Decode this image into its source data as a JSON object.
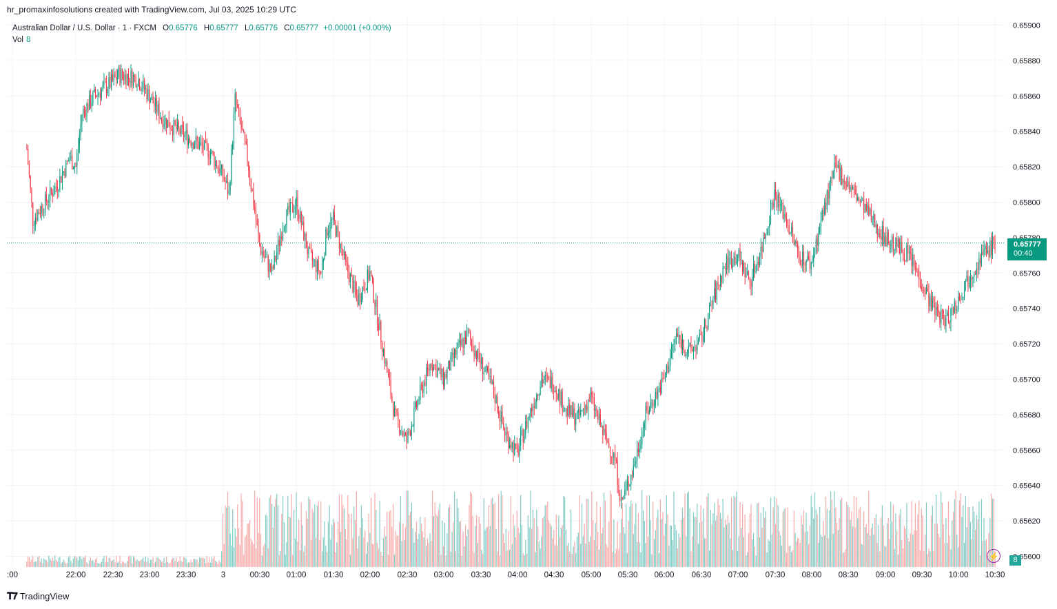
{
  "caption": "hr_promaxinfosolutions created with TradingView.com, Jul 03, 2025 10:29 UTC",
  "legend": {
    "symbol": "Australian Dollar / U.S. Dollar · 1 · FXCM",
    "o_label": "O",
    "o": "0.65776",
    "h_label": "H",
    "h": "0.65777",
    "l_label": "L",
    "l": "0.65776",
    "c_label": "C",
    "c": "0.65777",
    "change": "+0.00001 (+0.00%)",
    "vol_label": "Vol",
    "vol": "8"
  },
  "last_price": {
    "price": "0.65777",
    "countdown": "00:40",
    "volume": "8"
  },
  "footer_logo": "TradingView",
  "colors": {
    "up": "#089981",
    "down": "#f23645",
    "vol_up": "#80cbc4",
    "vol_down": "#f7a9a7",
    "grid": "#f0f3fa"
  },
  "chart_data": {
    "type": "candlestick",
    "x_ticks": [
      ":00",
      "22:00",
      "22:30",
      "23:00",
      "23:30",
      "3",
      "00:30",
      "01:00",
      "01:30",
      "02:00",
      "02:30",
      "03:00",
      "03:30",
      "04:00",
      "04:30",
      "05:00",
      "05:30",
      "06:00",
      "06:30",
      "07:00",
      "07:30",
      "08:00",
      "08:30",
      "09:00",
      "09:30",
      "10:00",
      "10:30"
    ],
    "y_ticks": [
      "0.65900",
      "0.65880",
      "0.65860",
      "0.65840",
      "0.65820",
      "0.65800",
      "0.65780",
      "0.65760",
      "0.65740",
      "0.65720",
      "0.65700",
      "0.65680",
      "0.65660",
      "0.65640",
      "0.65620",
      "0.65600"
    ],
    "ylim": [
      0.656,
      0.659
    ],
    "price_path": [
      [
        "21:20",
        0.6583
      ],
      [
        "21:25",
        0.6579
      ],
      [
        "21:35",
        0.658
      ],
      [
        "21:45",
        0.6581
      ],
      [
        "21:55",
        0.65825
      ],
      [
        "22:00",
        0.6582
      ],
      [
        "22:05",
        0.6585
      ],
      [
        "22:15",
        0.6586
      ],
      [
        "22:30",
        0.65868
      ],
      [
        "22:35",
        0.65872
      ],
      [
        "22:50",
        0.6587
      ],
      [
        "23:00",
        0.6586
      ],
      [
        "23:10",
        0.65848
      ],
      [
        "23:20",
        0.65842
      ],
      [
        "23:35",
        0.65835
      ],
      [
        "23:50",
        0.65828
      ],
      [
        "00:00",
        0.65815
      ],
      [
        "00:05",
        0.65805
      ],
      [
        "00:10",
        0.65858
      ],
      [
        "00:20",
        0.65825
      ],
      [
        "00:30",
        0.65775
      ],
      [
        "00:40",
        0.6576
      ],
      [
        "00:50",
        0.6579
      ],
      [
        "01:00",
        0.658
      ],
      [
        "01:10",
        0.6577
      ],
      [
        "01:20",
        0.6576
      ],
      [
        "01:25",
        0.65785
      ],
      [
        "01:30",
        0.6579
      ],
      [
        "01:40",
        0.65765
      ],
      [
        "01:50",
        0.65745
      ],
      [
        "02:00",
        0.6576
      ],
      [
        "02:10",
        0.6572
      ],
      [
        "02:20",
        0.6568
      ],
      [
        "02:30",
        0.65665
      ],
      [
        "02:40",
        0.6569
      ],
      [
        "02:50",
        0.6571
      ],
      [
        "03:00",
        0.657
      ],
      [
        "03:10",
        0.65715
      ],
      [
        "03:20",
        0.65725
      ],
      [
        "03:30",
        0.6571
      ],
      [
        "03:40",
        0.65695
      ],
      [
        "03:50",
        0.6567
      ],
      [
        "04:00",
        0.65658
      ],
      [
        "04:10",
        0.6568
      ],
      [
        "04:20",
        0.657
      ],
      [
        "04:30",
        0.65698
      ],
      [
        "04:40",
        0.65682
      ],
      [
        "04:50",
        0.65678
      ],
      [
        "05:00",
        0.6569
      ],
      [
        "05:10",
        0.6567
      ],
      [
        "05:20",
        0.65655
      ],
      [
        "05:25",
        0.6563
      ],
      [
        "05:35",
        0.6565
      ],
      [
        "05:45",
        0.6568
      ],
      [
        "06:00",
        0.657
      ],
      [
        "06:10",
        0.65725
      ],
      [
        "06:20",
        0.65715
      ],
      [
        "06:30",
        0.65722
      ],
      [
        "06:40",
        0.65745
      ],
      [
        "06:50",
        0.65765
      ],
      [
        "07:00",
        0.6577
      ],
      [
        "07:10",
        0.65755
      ],
      [
        "07:20",
        0.65775
      ],
      [
        "07:30",
        0.65805
      ],
      [
        "07:40",
        0.6579
      ],
      [
        "07:50",
        0.6577
      ],
      [
        "08:00",
        0.65765
      ],
      [
        "08:10",
        0.65795
      ],
      [
        "08:20",
        0.6582
      ],
      [
        "08:30",
        0.6581
      ],
      [
        "08:40",
        0.658
      ],
      [
        "08:50",
        0.6579
      ],
      [
        "09:00",
        0.6578
      ],
      [
        "09:10",
        0.65775
      ],
      [
        "09:20",
        0.6577
      ],
      [
        "09:30",
        0.65755
      ],
      [
        "09:40",
        0.6574
      ],
      [
        "09:50",
        0.65733
      ],
      [
        "10:00",
        0.65745
      ],
      [
        "10:10",
        0.6576
      ],
      [
        "10:20",
        0.6577
      ],
      [
        "10:30",
        0.65777
      ]
    ]
  }
}
